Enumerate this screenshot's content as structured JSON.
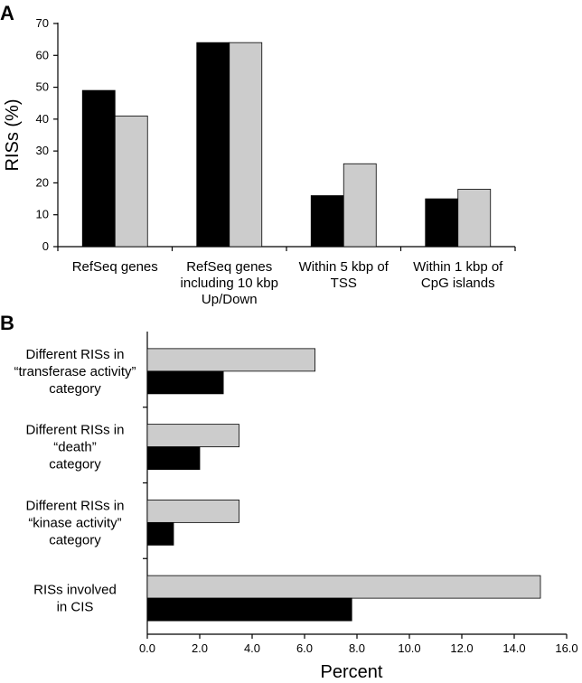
{
  "panel_a_letter": "A",
  "panel_b_letter": "B",
  "colors": {
    "series1": "#000000",
    "series2": "#cccccc",
    "axis": "#000000"
  },
  "chart_data": [
    {
      "type": "bar",
      "orientation": "vertical",
      "panel": "A",
      "title": "",
      "xlabel": "",
      "ylabel": "RISs (%)",
      "ylim": [
        0,
        70
      ],
      "yticks": [
        "0",
        "10",
        "20",
        "30",
        "40",
        "50",
        "60",
        "70"
      ],
      "categories": [
        [
          "RefSeq genes"
        ],
        [
          "RefSeq genes",
          "including 10 kbp",
          "Up/Down"
        ],
        [
          "Within 5 kbp of",
          "TSS"
        ],
        [
          "Within 1 kbp of",
          "CpG islands"
        ]
      ],
      "series": [
        {
          "name": "black",
          "values": [
            49,
            64,
            16,
            15
          ]
        },
        {
          "name": "gray",
          "values": [
            41,
            64,
            26,
            18
          ]
        }
      ]
    },
    {
      "type": "bar",
      "orientation": "horizontal",
      "panel": "B",
      "title": "",
      "xlabel": "Percent",
      "ylabel": "",
      "xlim": [
        0,
        16
      ],
      "xticks": [
        "0.0",
        "2.0",
        "4.0",
        "6.0",
        "8.0",
        "10.0",
        "12.0",
        "14.0",
        "16.0"
      ],
      "categories": [
        [
          "Different RISs in",
          "“transferase activity”",
          "category"
        ],
        [
          "Different RISs in",
          "“death”",
          "category"
        ],
        [
          "Different RISs in",
          "“kinase activity”",
          "category"
        ],
        [
          "RISs involved",
          "in CIS"
        ]
      ],
      "series": [
        {
          "name": "gray",
          "values": [
            6.4,
            3.5,
            3.5,
            15.0
          ]
        },
        {
          "name": "black",
          "values": [
            2.9,
            2.0,
            1.0,
            7.8
          ]
        }
      ]
    }
  ]
}
